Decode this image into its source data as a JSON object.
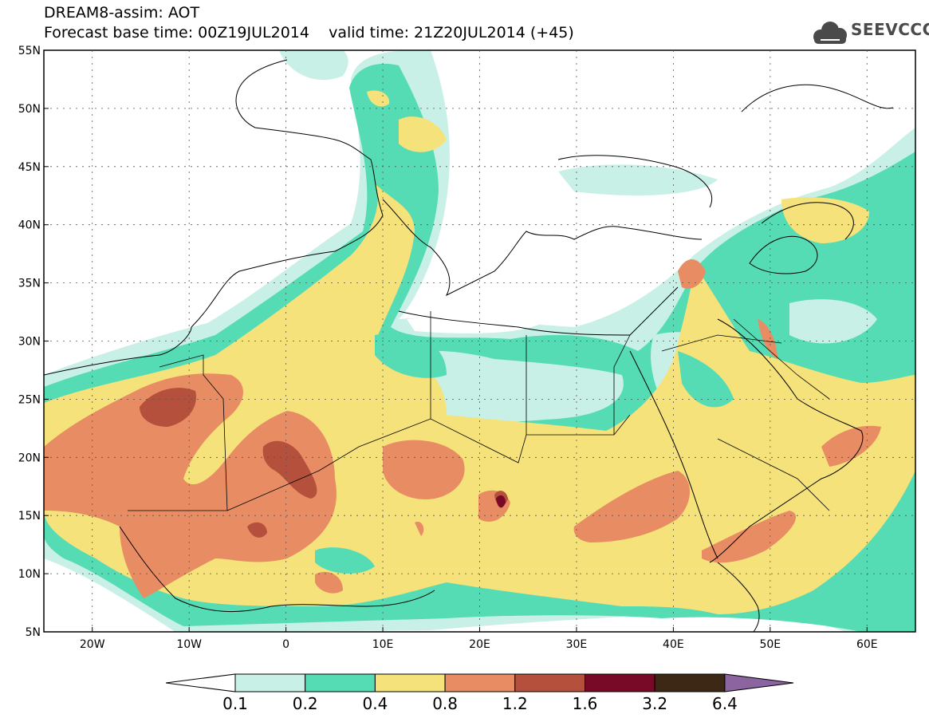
{
  "header": {
    "model_line": "DREAM8-assim: AOT",
    "forecast_line": "Forecast base time: 00Z19JUL2014    valid time: 21Z20JUL2014 (+45)",
    "logo_text": "SEEVCCC"
  },
  "map": {
    "lon_range": [
      -25,
      65
    ],
    "lat_range": [
      5,
      55
    ],
    "lon_ticks": [
      "20W",
      "10W",
      "0",
      "10E",
      "20E",
      "30E",
      "40E",
      "50E",
      "60E"
    ],
    "lon_tick_values": [
      -20,
      -10,
      0,
      10,
      20,
      30,
      40,
      50,
      60
    ],
    "lat_ticks": [
      "5N",
      "10N",
      "15N",
      "20N",
      "25N",
      "30N",
      "35N",
      "40N",
      "45N",
      "50N",
      "55N"
    ],
    "lat_tick_values": [
      5,
      10,
      15,
      20,
      25,
      30,
      35,
      40,
      45,
      50,
      55
    ],
    "gridlines": "dotted"
  },
  "colorbar": {
    "labels": [
      "0.1",
      "0.2",
      "0.4",
      "0.8",
      "1.2",
      "1.6",
      "3.2",
      "6.4"
    ],
    "colors": [
      "#c8f0e6",
      "#55dcb4",
      "#f6e27a",
      "#e88c64",
      "#b4503c",
      "#780a28",
      "#3c2814",
      "#8c64a0"
    ],
    "under_color": "#ffffff"
  }
}
